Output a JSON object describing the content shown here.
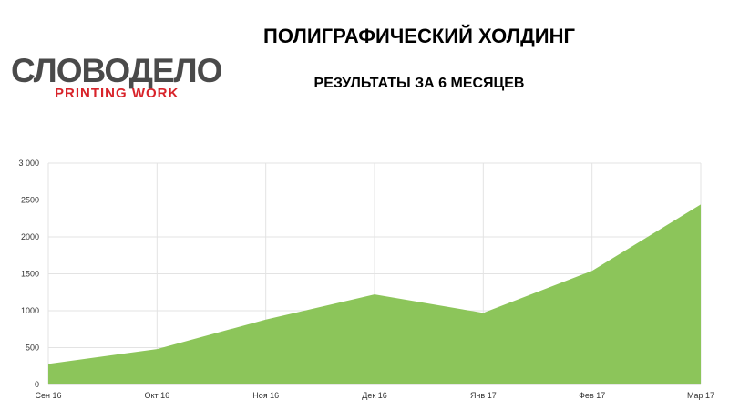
{
  "header": {
    "title": "ПОЛИГРАФИЧЕСКИЙ ХОЛДИНГ",
    "subtitle": "РЕЗУЛЬТАТЫ ЗА 6 МЕСЯЦЕВ"
  },
  "logo": {
    "main": "СЛОВОДЕЛО",
    "sub": "PRINTING WORK"
  },
  "colors": {
    "area_fill": "#8cc55a",
    "brand_red": "#d8232a",
    "grid": "#e3e3e3"
  },
  "chart_data": {
    "type": "area",
    "categories": [
      "Сен 16",
      "Окт 16",
      "Ноя 16",
      "Дек 16",
      "Янв 17",
      "Фев 17",
      "Мар 17"
    ],
    "series": [
      {
        "values": [
          280,
          480,
          880,
          1220,
          970,
          1540,
          2440
        ]
      }
    ],
    "title": "",
    "xlabel": "",
    "ylabel": "",
    "ylim": [
      0,
      3000
    ],
    "yticks": [
      0,
      500,
      1000,
      1500,
      2000,
      2500,
      3000
    ],
    "ytick_labels": [
      "0",
      "500",
      "1000",
      "1500",
      "2000",
      "2500",
      "3 000"
    ],
    "grid": true,
    "legend": "none"
  }
}
